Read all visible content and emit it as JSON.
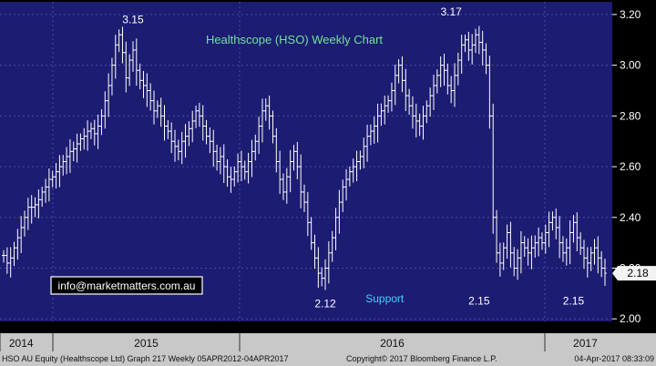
{
  "chart_data": {
    "type": "ohlc",
    "title": "Healthscope (HSO) Weekly Chart",
    "ylim": [
      1.99,
      3.25
    ],
    "y_ticks": [
      2.0,
      2.2,
      2.4,
      2.6,
      2.8,
      3.0,
      3.2
    ],
    "y_tick_labels": [
      "2.00",
      "2.20",
      "2.40",
      "2.60",
      "2.80",
      "3.00",
      "3.20"
    ],
    "x_labels": [
      {
        "label": "2014",
        "at": 0.4
      },
      {
        "label": "2015",
        "at": 0.5
      },
      {
        "label": "2016",
        "at": 0.5
      },
      {
        "label": "2017",
        "at": 0.6
      }
    ],
    "annotations": [
      {
        "text": "3.15",
        "x": 37,
        "y": 3.18
      },
      {
        "text": "3.17",
        "x": 128,
        "y": 3.21
      },
      {
        "text": "2.12",
        "x": 92,
        "y": 2.06
      },
      {
        "text": "2.15",
        "x": 136,
        "y": 2.07
      },
      {
        "text": "2.15",
        "x": 163,
        "y": 2.07
      },
      {
        "text": "Support",
        "x": 109,
        "y": 2.08
      }
    ],
    "last_price": 2.18,
    "closes": [
      2.25,
      2.22,
      2.24,
      2.28,
      2.32,
      2.36,
      2.4,
      2.44,
      2.44,
      2.45,
      2.47,
      2.5,
      2.52,
      2.55,
      2.56,
      2.58,
      2.6,
      2.62,
      2.64,
      2.66,
      2.67,
      2.69,
      2.71,
      2.72,
      2.74,
      2.75,
      2.73,
      2.76,
      2.8,
      2.86,
      2.92,
      3.0,
      3.08,
      3.12,
      3.05,
      2.95,
      3.02,
      3.06,
      2.98,
      2.94,
      2.92,
      2.9,
      2.86,
      2.82,
      2.84,
      2.8,
      2.76,
      2.74,
      2.7,
      2.68,
      2.66,
      2.7,
      2.72,
      2.75,
      2.78,
      2.82,
      2.8,
      2.76,
      2.72,
      2.7,
      2.66,
      2.62,
      2.64,
      2.6,
      2.56,
      2.55,
      2.58,
      2.62,
      2.6,
      2.58,
      2.62,
      2.66,
      2.7,
      2.76,
      2.82,
      2.84,
      2.8,
      2.72,
      2.62,
      2.55,
      2.5,
      2.56,
      2.62,
      2.66,
      2.6,
      2.5,
      2.46,
      2.38,
      2.3,
      2.24,
      2.18,
      2.16,
      2.2,
      2.26,
      2.32,
      2.4,
      2.46,
      2.52,
      2.55,
      2.58,
      2.6,
      2.62,
      2.64,
      2.68,
      2.72,
      2.74,
      2.76,
      2.8,
      2.82,
      2.84,
      2.86,
      2.9,
      2.96,
      3.0,
      2.94,
      2.88,
      2.84,
      2.8,
      2.78,
      2.76,
      2.8,
      2.84,
      2.88,
      2.92,
      2.96,
      3.0,
      2.98,
      2.92,
      2.9,
      2.96,
      3.02,
      3.08,
      3.1,
      3.06,
      3.08,
      3.12,
      3.09,
      3.06,
      3.0,
      2.8,
      2.4,
      2.26,
      2.22,
      2.28,
      2.34,
      2.26,
      2.2,
      2.24,
      2.3,
      2.28,
      2.26,
      2.28,
      2.3,
      2.32,
      2.3,
      2.34,
      2.38,
      2.4,
      2.36,
      2.3,
      2.26,
      2.28,
      2.34,
      2.38,
      2.32,
      2.28,
      2.24,
      2.22,
      2.26,
      2.28,
      2.24,
      2.2,
      2.18
    ],
    "grid": true,
    "legend": "none"
  },
  "colors": {
    "background": "#1c1c72",
    "grid": "#4a4aa8",
    "bars": "#ffffff",
    "title": "#6fe39b",
    "support": "#3fd3ff",
    "axis_text": "#ffffff",
    "email_border": "#ffffff",
    "email_text": "#ffffff"
  },
  "email_box": {
    "text": "info@marketmatters.com.au"
  },
  "footer": {
    "left": "HSO AU Equity (Healthscope Ltd) Graph 217  Weekly 05APR2012-04APR2017",
    "center": "Copyright© 2017 Bloomberg Finance L.P.",
    "right": "04-Apr-2017 08:33:09"
  }
}
